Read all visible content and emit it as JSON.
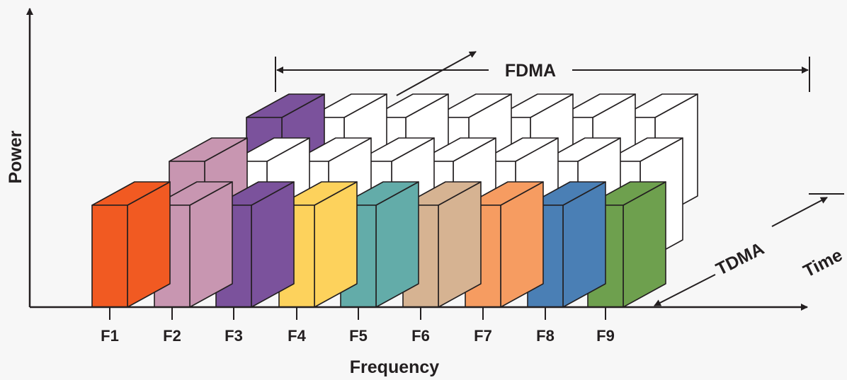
{
  "axes": {
    "y_label": "Power",
    "x_label": "Frequency",
    "depth_label": "Time"
  },
  "annotations": {
    "fdma": "FDMA",
    "tdma": "TDMA"
  },
  "frequencies": [
    {
      "label": "F1",
      "color": "#f15a22",
      "side": "#f15a22",
      "top": "#f15a22"
    },
    {
      "label": "F2",
      "color": "#c896b1",
      "side": "#c896b1",
      "top": "#c896b1"
    },
    {
      "label": "F3",
      "color": "#7b529c",
      "side": "#7b529c",
      "top": "#7b529c"
    },
    {
      "label": "F4",
      "color": "#fdd25c",
      "side": "#fdd25c",
      "top": "#fdd25c"
    },
    {
      "label": "F5",
      "color": "#63aca9",
      "side": "#63aca9",
      "top": "#63aca9"
    },
    {
      "label": "F6",
      "color": "#d6b392",
      "side": "#d6b392",
      "top": "#d6b392"
    },
    {
      "label": "F7",
      "color": "#f69c61",
      "side": "#f69c61",
      "top": "#f69c61"
    },
    {
      "label": "F8",
      "color": "#4a7fb5",
      "side": "#4a7fb5",
      "top": "#4a7fb5"
    },
    {
      "label": "F9",
      "color": "#6ea04e",
      "side": "#6ea04e",
      "top": "#6ea04e"
    }
  ],
  "rows": [
    {
      "slot": 1,
      "colored": [
        "F1",
        "F2",
        "F3",
        "F4",
        "F5",
        "F6",
        "F7",
        "F8",
        "F9"
      ]
    },
    {
      "slot": 2,
      "colored": [
        "F2"
      ]
    },
    {
      "slot": 3,
      "colored": [
        "F3"
      ]
    }
  ],
  "colors": {
    "stroke": "#231f20",
    "empty_block": "#ffffff",
    "background": "#f7f7f7"
  }
}
